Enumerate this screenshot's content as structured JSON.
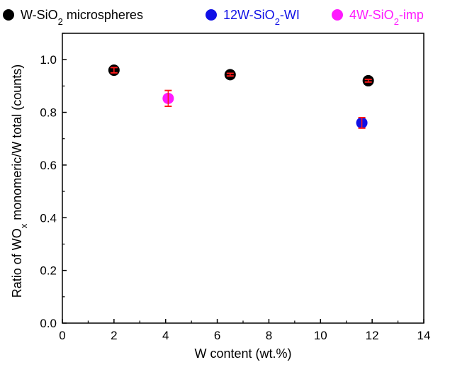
{
  "chart_data": {
    "type": "scatter",
    "xlabel": "W content (wt.%)",
    "ylabel_parts": {
      "pre": "Ratio of WO",
      "sub": "x",
      "post": " monomeric/W total (counts)"
    },
    "xlim": [
      0,
      14
    ],
    "ylim": [
      0.0,
      1.1
    ],
    "xticks": [
      "0",
      "2",
      "4",
      "6",
      "8",
      "10",
      "12",
      "14"
    ],
    "yticks": [
      "0.0",
      "0.2",
      "0.4",
      "0.6",
      "0.8",
      "1.0"
    ],
    "legend_placement": "top",
    "series": [
      {
        "name_parts": {
          "pre": "W-SiO",
          "sub": "2",
          "post": " microspheres"
        },
        "color": "#000000",
        "points": [
          {
            "x": 2.0,
            "y": 0.96,
            "err": 0.01
          },
          {
            "x": 6.5,
            "y": 0.943,
            "err": 0.005
          },
          {
            "x": 11.85,
            "y": 0.92,
            "err": 0.005
          }
        ]
      },
      {
        "name_parts": {
          "pre": "12W-SiO",
          "sub": "2",
          "post": "-WI"
        },
        "color": "#1010e6",
        "points": [
          {
            "x": 11.6,
            "y": 0.76,
            "err": 0.02
          }
        ]
      },
      {
        "name_parts": {
          "pre": "4W-SiO",
          "sub": "2",
          "post": "-imp"
        },
        "color": "#ff1aff",
        "points": [
          {
            "x": 4.1,
            "y": 0.853,
            "err": 0.03
          }
        ]
      }
    ],
    "error_bar_color": "#ff1a1a"
  }
}
